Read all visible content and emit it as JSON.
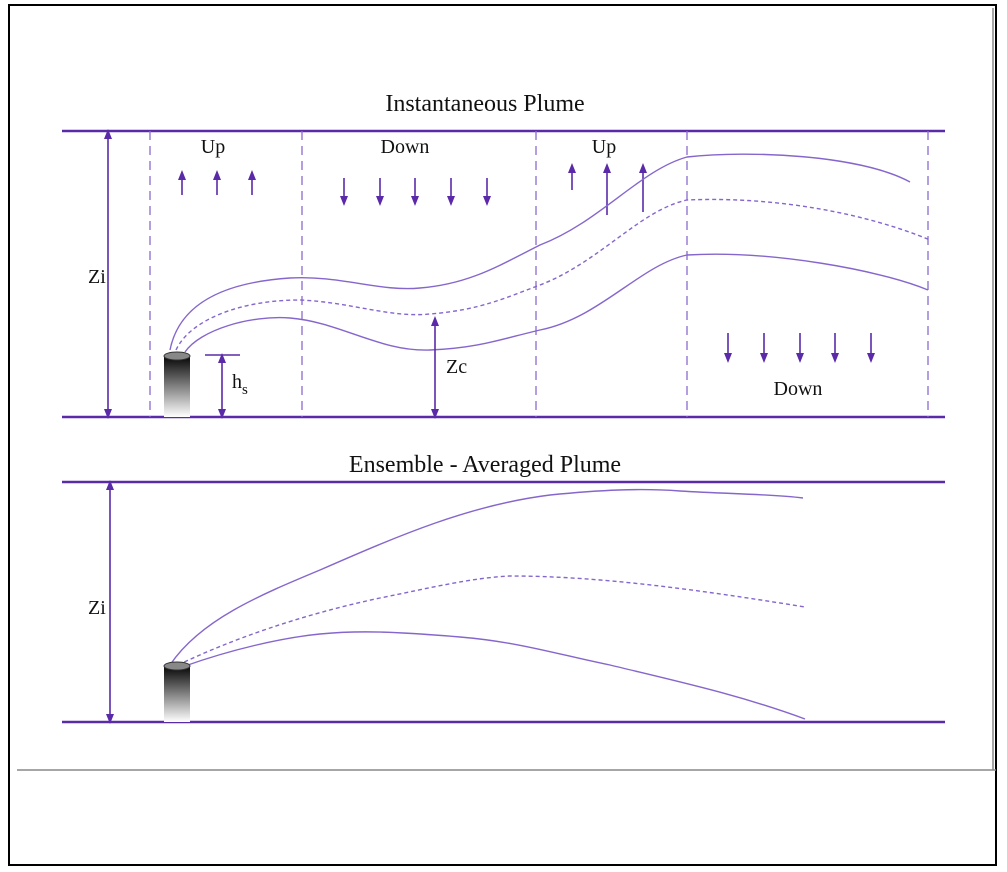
{
  "instantaneous": {
    "title": "Instantaneous Plume",
    "zi": "Zi",
    "zc": "Zc",
    "hs": {
      "symbol": "h",
      "subscript": "s"
    },
    "regions": [
      {
        "label": "Up"
      },
      {
        "label": "Down"
      },
      {
        "label": "Up"
      },
      {
        "label": "Down"
      }
    ]
  },
  "ensemble": {
    "title": "Ensemble - Averaged Plume",
    "zi": "Zi"
  }
}
